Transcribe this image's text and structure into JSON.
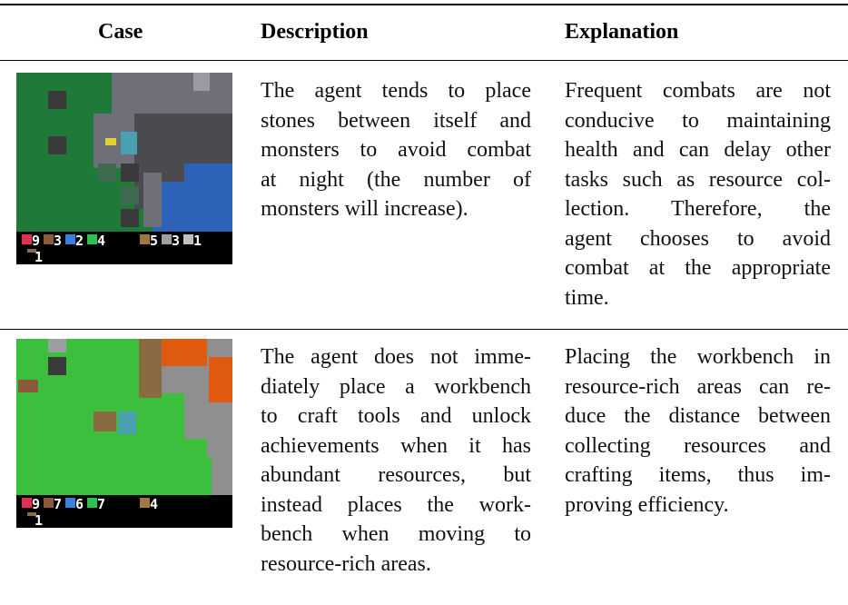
{
  "table": {
    "header": [
      "Case",
      "Description",
      "Explanation"
    ],
    "rows": [
      {
        "hud": {
          "top": [
            "9",
            "3",
            "2",
            "4",
            "5",
            "3",
            "1"
          ],
          "bottom": [
            "1"
          ]
        },
        "description": [
          "The agent tends to place",
          "stones between itself and",
          "monsters to avoid combat",
          "at night (the number of",
          "monsters will increase)."
        ],
        "explanation": [
          "Frequent combats are not",
          "conducive to maintaining",
          "health and can delay other",
          "tasks such as resource col-",
          "lection.   Therefore, the",
          "agent chooses to avoid",
          "combat at the appropriate",
          "time."
        ]
      },
      {
        "hud": {
          "top": [
            "9",
            "7",
            "6",
            "7",
            "4"
          ],
          "bottom": [
            "1"
          ]
        },
        "description": [
          "The agent does not imme-",
          "diately place a workbench",
          "to craft tools and unlock",
          "achievements when it has",
          "abundant resources, but",
          "instead places the work-",
          "bench when moving to",
          "resource-rich areas."
        ],
        "explanation": [
          "Placing the workbench in",
          "resource-rich areas can re-",
          "duce the distance between",
          "collecting resources and",
          "crafting items, thus im-",
          "proving efficiency."
        ]
      }
    ]
  }
}
